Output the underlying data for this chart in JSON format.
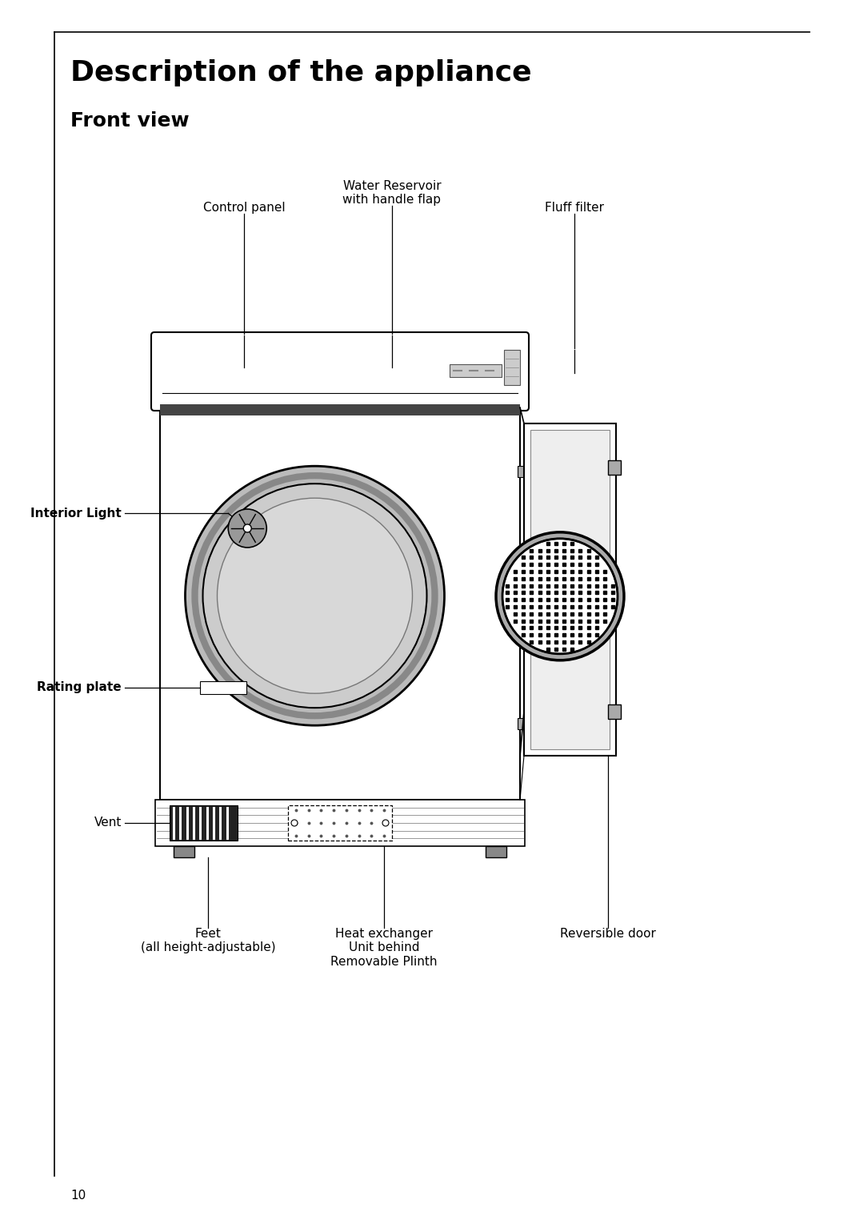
{
  "title": "Description of the appliance",
  "subtitle": "Front view",
  "page_number": "10",
  "bg_color": "#ffffff",
  "title_fontsize": 26,
  "subtitle_fontsize": 18,
  "label_fontsize": 11,
  "labels": {
    "control_panel": "Control panel",
    "water_reservoir": "Water Reservoir\nwith handle flap",
    "fluff_filter": "Fluff filter",
    "interior_light": "Interior Light",
    "rating_plate": "Rating plate",
    "vent": "Vent",
    "feet": "Feet\n(all height-adjustable)",
    "heat_exchanger": "Heat exchanger\nUnit behind\nRemovable Plinth",
    "reversible_door": "Reversible door"
  }
}
